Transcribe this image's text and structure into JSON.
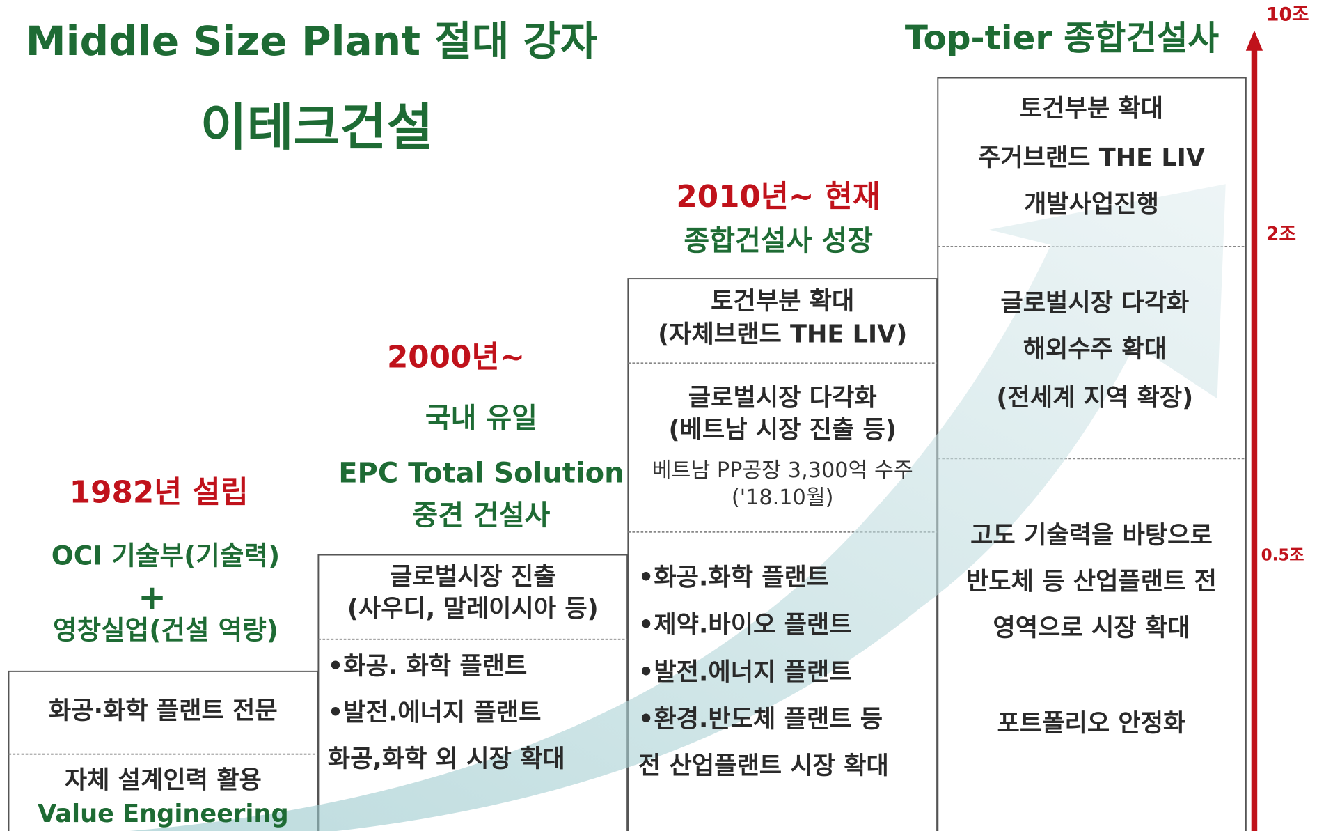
{
  "header": {
    "title": "Middle Size Plant 절대 강자",
    "company": "이테크건설",
    "top_tier": "Top-tier 종합건설사"
  },
  "scale": {
    "labels": [
      "10조",
      "2조",
      "0.5조"
    ]
  },
  "stages": [
    {
      "period": "1982년 설립",
      "subtitle": [
        "OCI 기술부(기술력)",
        "+",
        "영창실업(건설 역량)"
      ],
      "boxes": [
        {
          "lines": [
            "화공·화학 플랜트 전문"
          ]
        },
        {
          "lines": [
            "자체 설계인력 활용",
            "Value Engineering"
          ]
        }
      ]
    },
    {
      "period": "2000년~",
      "subtitle": [
        "국내 유일",
        "EPC Total Solution",
        "중견 건설사"
      ],
      "boxes": [
        {
          "lines": [
            "글로벌시장 진출",
            "(사우디, 말레이시아 등)"
          ]
        },
        {
          "lines": [
            "•화공. 화학 플랜트",
            "•발전.에너지 플랜트",
            "화공,화학 외 시장 확대"
          ]
        }
      ]
    },
    {
      "period": "2010년~ 현재",
      "subtitle": [
        "종합건설사 성장"
      ],
      "boxes": [
        {
          "lines": [
            "토건부분 확대",
            "(자체브랜드 THE LIV)"
          ]
        },
        {
          "lines": [
            "글로벌시장 다각화",
            "(베트남 시장 진출 등)",
            "베트남 PP공장 3,300억 수주",
            "('18.10월)"
          ]
        },
        {
          "lines": [
            "•화공.화학 플랜트",
            "•제약.바이오 플랜트",
            "•발전.에너지 플랜트",
            "•환경.반도체 플랜트 등",
            "전 산업플랜트 시장 확대"
          ]
        }
      ]
    },
    {
      "boxes": [
        {
          "lines": [
            "토건부분 확대",
            "주거브랜드 THE LIV",
            "개발사업진행"
          ]
        },
        {
          "lines": [
            "글로벌시장 다각화",
            "해외수주 확대",
            "(전세계 지역 확장)"
          ]
        },
        {
          "lines": [
            "고도 기술력을 바탕으로",
            "반도체 등 산업플랜트 전",
            "영역으로 시장 확대",
            "포트폴리오 안정화"
          ]
        }
      ]
    }
  ]
}
